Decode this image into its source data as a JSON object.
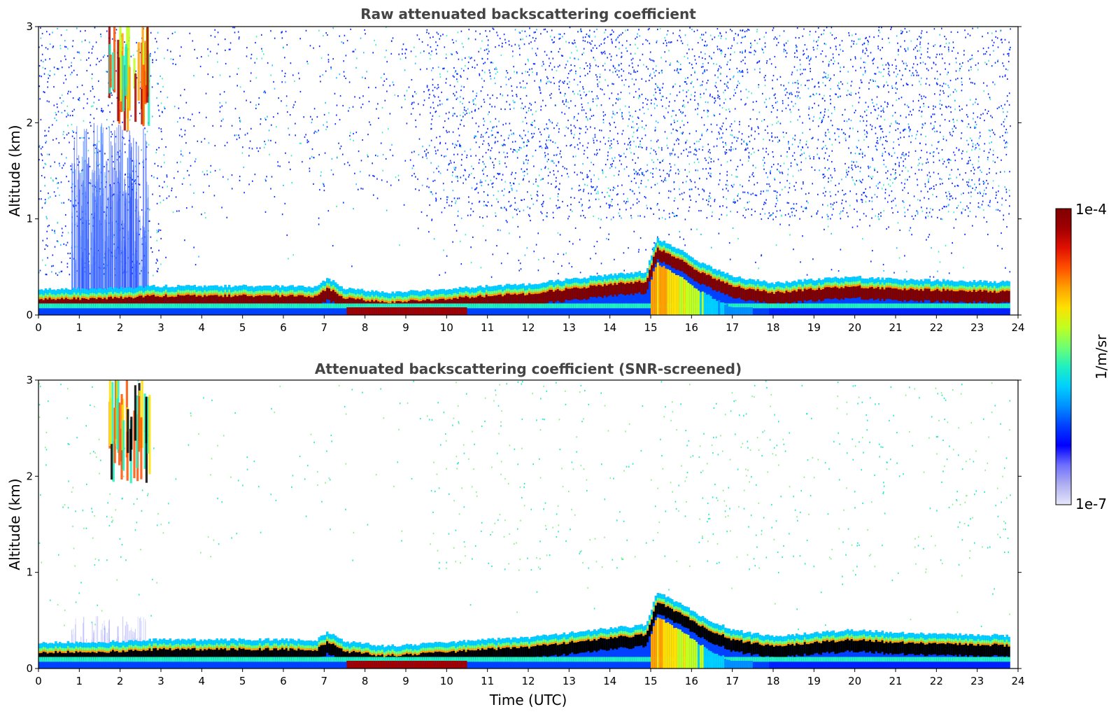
{
  "chart_data": [
    {
      "type": "heatmap",
      "title": "Raw attenuated backscattering coefficient",
      "xlabel": "",
      "ylabel": "Altitude (km)",
      "xlim": [
        0,
        24
      ],
      "ylim": [
        0,
        3
      ],
      "xticks": [
        "0",
        "1",
        "2",
        "3",
        "4",
        "5",
        "6",
        "7",
        "8",
        "9",
        "10",
        "11",
        "12",
        "13",
        "14",
        "15",
        "16",
        "17",
        "18",
        "19",
        "20",
        "21",
        "22",
        "23",
        "24"
      ],
      "yticks": [
        "0",
        "1",
        "2",
        "3"
      ],
      "data_end_hour": 23.8,
      "boundary_layer_top_km": [
        {
          "t": 0,
          "z": 0.27
        },
        {
          "t": 1,
          "z": 0.27
        },
        {
          "t": 2,
          "z": 0.28
        },
        {
          "t": 3,
          "z": 0.3
        },
        {
          "t": 4,
          "z": 0.3
        },
        {
          "t": 5,
          "z": 0.3
        },
        {
          "t": 6,
          "z": 0.3
        },
        {
          "t": 6.8,
          "z": 0.29
        },
        {
          "t": 7.1,
          "z": 0.38
        },
        {
          "t": 7.5,
          "z": 0.28
        },
        {
          "t": 8.5,
          "z": 0.23
        },
        {
          "t": 10,
          "z": 0.27
        },
        {
          "t": 11,
          "z": 0.3
        },
        {
          "t": 12,
          "z": 0.32
        },
        {
          "t": 13,
          "z": 0.37
        },
        {
          "t": 14,
          "z": 0.42
        },
        {
          "t": 14.9,
          "z": 0.45
        },
        {
          "t": 15.15,
          "z": 0.8
        },
        {
          "t": 15.7,
          "z": 0.68
        },
        {
          "t": 16.2,
          "z": 0.55
        },
        {
          "t": 17,
          "z": 0.4
        },
        {
          "t": 18,
          "z": 0.33
        },
        {
          "t": 19,
          "z": 0.37
        },
        {
          "t": 20,
          "z": 0.4
        },
        {
          "t": 21,
          "z": 0.37
        },
        {
          "t": 22,
          "z": 0.36
        },
        {
          "t": 23,
          "z": 0.35
        },
        {
          "t": 23.8,
          "z": 0.34
        }
      ],
      "high_cloud": {
        "t_start": 1.7,
        "t_end": 2.7,
        "z_bottom": 1.9,
        "z_top": 3.0
      }
    },
    {
      "type": "heatmap",
      "title": "Attenuated backscattering coefficient (SNR-screened)",
      "xlabel": "Time (UTC)",
      "ylabel": "Altitude (km)",
      "xlim": [
        0,
        24
      ],
      "ylim": [
        0,
        3
      ],
      "xticks": [
        "0",
        "1",
        "2",
        "3",
        "4",
        "5",
        "6",
        "7",
        "8",
        "9",
        "10",
        "11",
        "12",
        "13",
        "14",
        "15",
        "16",
        "17",
        "18",
        "19",
        "20",
        "21",
        "22",
        "23",
        "24"
      ],
      "yticks": [
        "0",
        "1",
        "2",
        "3"
      ],
      "data_end_hour": 23.8
    }
  ],
  "colorbar": {
    "max_label": "1e-4",
    "min_label": "1e-7",
    "unit_label": "1/m/sr",
    "colors": [
      "#e6e6fa",
      "#b0b0f0",
      "#7070ff",
      "#0000ff",
      "#0040ff",
      "#0090ff",
      "#00d0ff",
      "#20f0c0",
      "#70ff70",
      "#c0ff20",
      "#ffe000",
      "#ffa000",
      "#ff5000",
      "#e01000",
      "#a00000",
      "#800000"
    ]
  }
}
